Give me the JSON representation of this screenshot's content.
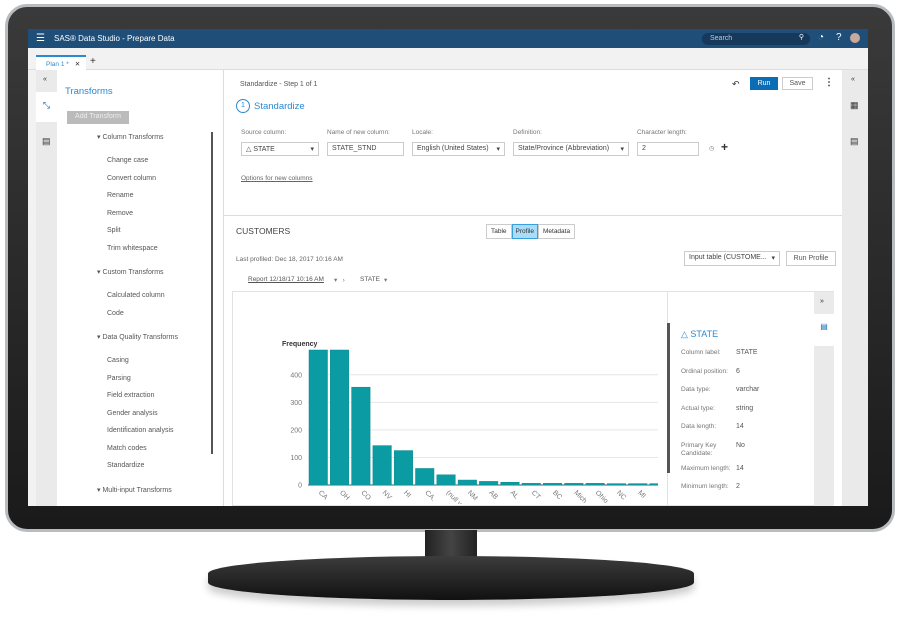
{
  "window": {
    "title": "SAS® Data Studio - Prepare Data",
    "search_placeholder": "Search"
  },
  "tabs": [
    {
      "label": "Plan 1 *"
    }
  ],
  "sidebar": {
    "title": "Transforms",
    "add_button": "Add Transform",
    "groups": [
      {
        "label": "Column Transforms",
        "items": [
          "Change case",
          "Convert column",
          "Rename",
          "Remove",
          "Split",
          "Trim whitespace"
        ]
      },
      {
        "label": "Custom Transforms",
        "items": [
          "Calculated column",
          "Code"
        ]
      },
      {
        "label": "Data Quality Transforms",
        "items": [
          "Casing",
          "Parsing",
          "Field extraction",
          "Gender analysis",
          "Identification analysis",
          "Match codes",
          "Standardize"
        ]
      },
      {
        "label": "Multi-input Transforms",
        "items": []
      }
    ]
  },
  "step": {
    "header": "Standardize - Step 1 of 1",
    "number": "1",
    "title": "Standardize",
    "run": "Run",
    "save": "Save",
    "fields": {
      "source_label": "Source column:",
      "source_value": "STATE",
      "name_label": "Name of new column:",
      "name_value": "STATE_STND",
      "locale_label": "Locale:",
      "locale_value": "English (United States)",
      "definition_label": "Definition:",
      "definition_value": "State/Province (Abbreviation)",
      "length_label": "Character length:",
      "length_value": "2"
    },
    "options_link": "Options for new columns"
  },
  "table": {
    "name": "CUSTOMERS",
    "views": [
      "Table",
      "Profile",
      "Metadata"
    ],
    "active_view": "Profile",
    "last_profiled": "Last profiled:  Dec 18, 2017 10:16 AM",
    "input_select": "Input table (CUSTOME...",
    "run_profile": "Run Profile",
    "report": "Report 12/18/17 10:16 AM",
    "column": "STATE"
  },
  "details": {
    "title": "STATE",
    "rows": [
      [
        "Column label:",
        "STATE"
      ],
      [
        "Ordinal position:",
        "6"
      ],
      [
        "Data type:",
        "varchar"
      ],
      [
        "Actual type:",
        "string"
      ],
      [
        "Data length:",
        "14"
      ],
      [
        "Primary Key Candidate:",
        "No"
      ],
      [
        "Maximum length:",
        "14"
      ],
      [
        "Minimum length:",
        "2"
      ]
    ]
  },
  "colors": {
    "header": "#1f4e79",
    "accent": "#0a9ba3",
    "primary": "#0b6db3"
  },
  "chart_data": {
    "type": "bar",
    "ylabel": "Frequency",
    "yticks": [
      0,
      100,
      200,
      300,
      400
    ],
    "ylim": [
      0,
      490
    ],
    "grid": true,
    "categories": [
      "CA",
      "OH",
      "CO",
      "NV",
      "HI",
      "CA.",
      "(null value)",
      "NM",
      "AB",
      "AL",
      "CT",
      "BC",
      "Mich",
      "Ohio",
      "NC",
      "MI",
      "CA"
    ],
    "values": [
      490,
      490,
      355,
      143,
      125,
      60,
      37,
      18,
      13,
      10,
      6,
      6,
      6,
      6,
      5,
      5,
      5
    ]
  }
}
